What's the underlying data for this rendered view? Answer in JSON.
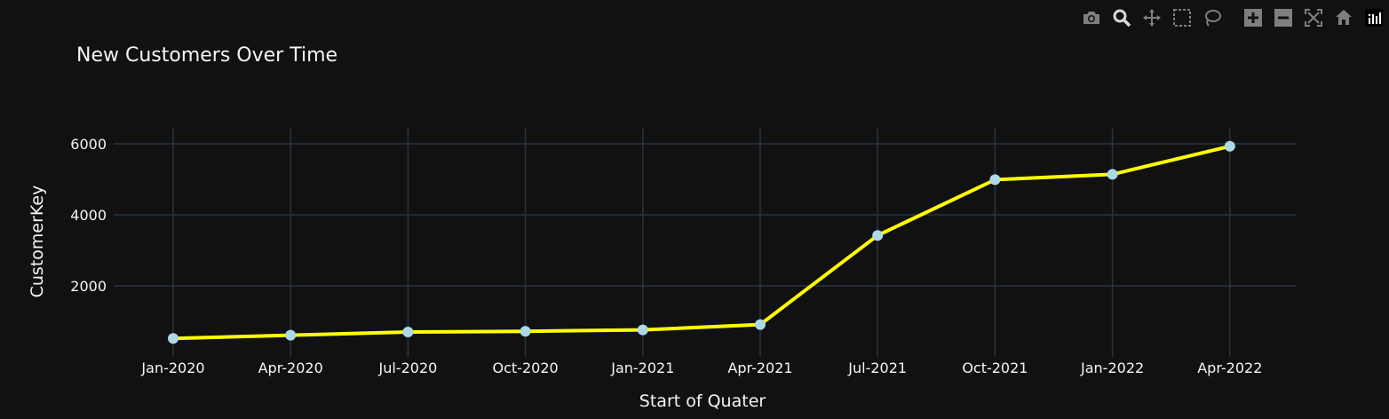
{
  "chart_data": {
    "type": "line",
    "title": "New Customers Over Time",
    "xlabel": "Start of Quater",
    "ylabel": "CustomerKey",
    "x": [
      "Jan-2020",
      "Apr-2020",
      "Jul-2020",
      "Oct-2020",
      "Jan-2021",
      "Apr-2021",
      "Jul-2021",
      "Oct-2021",
      "Jan-2022",
      "Apr-2022"
    ],
    "series": [
      {
        "values": [
          520,
          610,
          700,
          720,
          760,
          910,
          3420,
          4990,
          5140,
          5930
        ]
      }
    ],
    "y_ticks": [
      "2000",
      "4000",
      "6000"
    ],
    "ylim": [
      0,
      6450
    ],
    "grid": true,
    "line_color": "#ffff00",
    "marker_color": "#add8e6",
    "background_color": "#111111",
    "grid_color": "#283442"
  },
  "modebar": {
    "buttons": [
      {
        "icon": "camera-icon",
        "name": "download-plot-button"
      },
      {
        "icon": "zoom-icon",
        "name": "zoom-button"
      },
      {
        "icon": "pan-icon",
        "name": "pan-button"
      },
      {
        "icon": "box-select-icon",
        "name": "box-select-button"
      },
      {
        "icon": "lasso-select-icon",
        "name": "lasso-select-button"
      },
      {
        "icon": "zoom-in-icon",
        "name": "zoom-in-button"
      },
      {
        "icon": "zoom-out-icon",
        "name": "zoom-out-button"
      },
      {
        "icon": "autoscale-icon",
        "name": "autoscale-button"
      },
      {
        "icon": "home-icon",
        "name": "reset-axes-button"
      },
      {
        "icon": "plotly-logo-icon",
        "name": "plotly-logo"
      }
    ]
  }
}
